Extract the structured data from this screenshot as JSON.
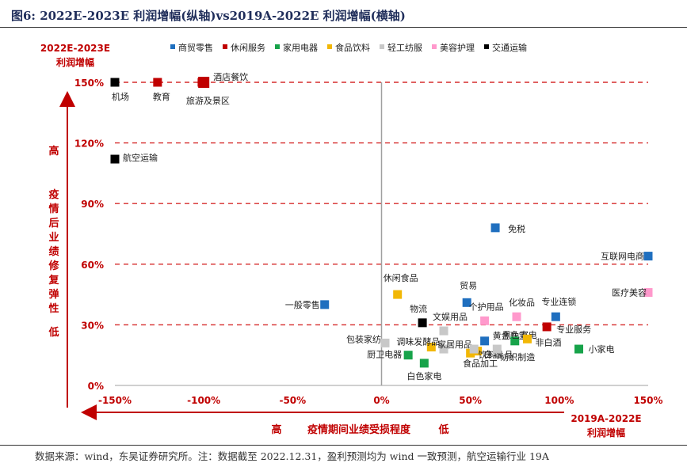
{
  "page": {
    "title": "图6:  2022E-2023E 利润增幅(纵轴)vs2019A-2022E 利润增幅(横轴)",
    "footer": "数据来源：wind，东吴证券研究所。注：数据截至 2022.12.31，盈利预测均为 wind 一致预测，航空运输行业 19A"
  },
  "chart_data": {
    "type": "scatter",
    "xlim": [
      -150,
      150
    ],
    "ylim": [
      0,
      150
    ],
    "x_ticks": [
      "-150%",
      "-100%",
      "-50%",
      "0%",
      "50%",
      "100%",
      "150%"
    ],
    "x_tick_values": [
      -150,
      -100,
      -50,
      0,
      50,
      100,
      150
    ],
    "y_ticks": [
      "0%",
      "30%",
      "60%",
      "90%",
      "120%",
      "150%"
    ],
    "y_tick_values": [
      0,
      30,
      60,
      90,
      120,
      150
    ],
    "ylabel_title": "2022E-2023E\n利润增幅",
    "xlabel_title": "2019A-2022E\n利润增幅",
    "y_axis_high": "高",
    "y_axis_low": "低",
    "y_axis_caption": "疫情后业绩修复弹性",
    "x_axis_high": "高",
    "x_axis_low": "低",
    "x_axis_caption": "疫情期间业绩受损程度",
    "grid": "horizontal dashed red lines at y ticks",
    "legend_position": "top",
    "series": [
      {
        "name": "商贸零售",
        "color": "#1f6fbf",
        "points": [
          {
            "label": "免税",
            "x": 64,
            "y": 78
          },
          {
            "label": "互联网电商",
            "x": 150,
            "y": 64
          },
          {
            "label": "一般零售",
            "x": -32,
            "y": 40
          },
          {
            "label": "贸易",
            "x": 48,
            "y": 41
          },
          {
            "label": "专业连锁",
            "x": 98,
            "y": 34
          },
          {
            "label": "黄金珠宝",
            "x": 58,
            "y": 22
          }
        ]
      },
      {
        "name": "休闲服务",
        "color": "#c00000",
        "points": [
          {
            "label": "教育",
            "x": -126,
            "y": 150
          },
          {
            "label": "酒店餐饮",
            "x": -100,
            "y": 150
          },
          {
            "label": "旅游及景区",
            "x": -101,
            "y": 150
          },
          {
            "label": "专业服务",
            "x": 93,
            "y": 29
          }
        ]
      },
      {
        "name": "家用电器",
        "color": "#17a34a",
        "points": [
          {
            "label": "黑色家电",
            "x": 75,
            "y": 22
          },
          {
            "label": "小家电",
            "x": 111,
            "y": 18
          },
          {
            "label": "厨卫电器",
            "x": 15,
            "y": 15
          },
          {
            "label": "白色家电",
            "x": 24,
            "y": 11
          }
        ]
      },
      {
        "name": "食品饮料",
        "color": "#f2b705",
        "points": [
          {
            "label": "休闲食品",
            "x": 9,
            "y": 45
          },
          {
            "label": "非白酒",
            "x": 82,
            "y": 23
          },
          {
            "label": "调味发酵品",
            "x": 28,
            "y": 19
          },
          {
            "label": "白酒",
            "x": 54,
            "y": 17
          },
          {
            "label": "饮料乳品",
            "x": 50,
            "y": 16
          }
        ]
      },
      {
        "name": "轻工纺服",
        "color": "#c8c8c8",
        "points": [
          {
            "label": "文娱用品",
            "x": 35,
            "y": 27
          },
          {
            "label": "家居用品",
            "x": 35,
            "y": 18
          },
          {
            "label": "包装家纺",
            "x": 2,
            "y": 21
          },
          {
            "label": "纺织制造",
            "x": 65,
            "y": 18
          },
          {
            "label": "食品加工",
            "x": 52,
            "y": 18
          }
        ]
      },
      {
        "name": "美容护理",
        "color": "#ff99cc",
        "points": [
          {
            "label": "化妆品",
            "x": 76,
            "y": 34
          },
          {
            "label": "个护用品",
            "x": 58,
            "y": 32
          },
          {
            "label": "医疗美容",
            "x": 150,
            "y": 46
          }
        ]
      },
      {
        "name": "交通运输",
        "color": "#000000",
        "points": [
          {
            "label": "机场",
            "x": -150,
            "y": 150
          },
          {
            "label": "航空运输",
            "x": -150,
            "y": 112
          },
          {
            "label": "物流",
            "x": 23,
            "y": 31
          }
        ]
      }
    ]
  }
}
